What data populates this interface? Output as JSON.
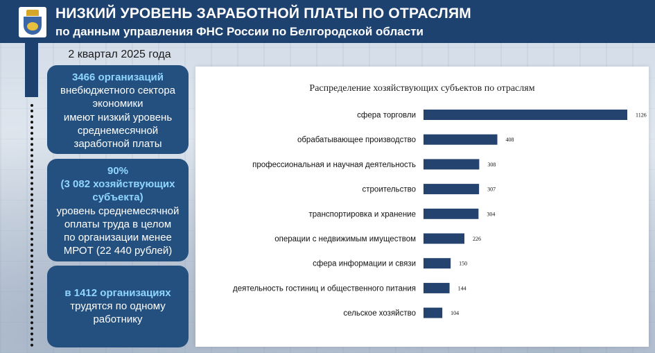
{
  "header": {
    "title": "НИЗКИЙ УРОВЕНЬ ЗАРАБОТНОЙ ПЛАТЫ ПО ОТРАСЛЯМ",
    "subtitle": "по данным управления ФНС России по Белгородской области"
  },
  "period": "2 квартал 2025 года",
  "boxes": {
    "b1_highlight": "3466 организаций",
    "b1_line1": "внебюджетного сектора",
    "b1_line2": "экономики",
    "b1_line3": "имеют низкий уровень",
    "b1_line4": "среднемесячной",
    "b1_line5": "заработной платы",
    "b2_highlight1": "90%",
    "b2_highlight2": "(3 082 хозяйствующих",
    "b2_highlight3": "субъекта)",
    "b2_line1": "уровень среднемесячной",
    "b2_line2": "оплаты труда в целом",
    "b2_line3": "по организации менее",
    "b2_line4": "МРОТ (22 440 рублей)",
    "b3_highlight": "в 1412 организациях",
    "b3_line1": "трудятся по одному",
    "b3_line2": "работнику"
  },
  "colors": {
    "header": "#1e4270",
    "box": "#24507f",
    "highlight": "#8fd6ff",
    "bar": "#24446f"
  },
  "chart_data": {
    "type": "bar",
    "orientation": "horizontal",
    "title": "Распределение хозяйствующих субъектов по отраслям",
    "categories": [
      "сфера торговли",
      "обрабатывающее производство",
      "профессиональная и научная деятельность",
      "строительство",
      "транспортировка и хранение",
      "операции с недвижимым имуществом",
      "сфера информации и связи",
      "деятельность гостиниц и общественного питания",
      "сельское хозяйство"
    ],
    "values": [
      1126,
      408,
      308,
      307,
      304,
      226,
      150,
      144,
      104
    ],
    "value_labels": [
      "1126",
      "408",
      "308",
      "307",
      "304",
      "226",
      "150",
      "144",
      "104"
    ],
    "xlim": [
      0,
      1126
    ],
    "grid": false,
    "legend": "none"
  }
}
